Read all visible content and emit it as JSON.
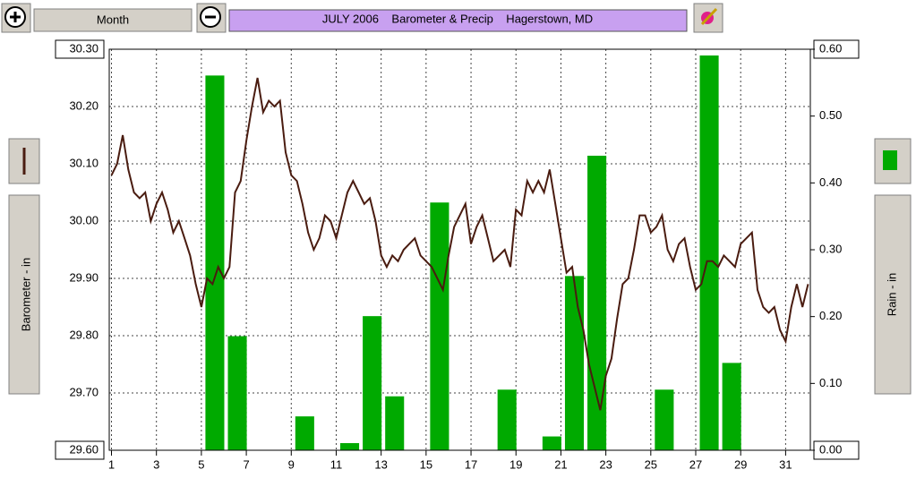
{
  "toolbar": {
    "period": "Month"
  },
  "chart_data": {
    "type": "combo",
    "title": "JULY 2006    Barometer & Precip    Hagerstown, MD",
    "xlim": [
      0.9,
      32.1
    ],
    "xticks": [
      1,
      3,
      5,
      7,
      9,
      11,
      13,
      15,
      17,
      19,
      21,
      23,
      25,
      27,
      29,
      31
    ],
    "ylim": [
      29.6,
      30.3
    ],
    "yticks": [
      {
        "value": 29.6,
        "label": "29.60"
      },
      {
        "value": 29.7,
        "label": "29.70"
      },
      {
        "value": 29.8,
        "label": "29.80"
      },
      {
        "value": 29.9,
        "label": "29.90"
      },
      {
        "value": 30.0,
        "label": "30.00"
      },
      {
        "value": 30.1,
        "label": "30.10"
      },
      {
        "value": 30.2,
        "label": "30.20"
      },
      {
        "value": 30.3,
        "label": "30.30"
      }
    ],
    "y2lim": [
      0,
      0.6
    ],
    "y2ticks": [
      {
        "value": 0,
        "label": "0.00"
      },
      {
        "value": 0.1,
        "label": "0.10"
      },
      {
        "value": 0.2,
        "label": "0.20"
      },
      {
        "value": 0.3,
        "label": "0.30"
      },
      {
        "value": 0.4,
        "label": "0.40"
      },
      {
        "value": 0.5,
        "label": "0.50"
      },
      {
        "value": 0.6,
        "label": "0.60"
      }
    ],
    "grid": true,
    "series": [
      {
        "name": "Barometer - in",
        "type": "line",
        "color": "#4a1c10",
        "x": [
          1,
          1.25,
          1.5,
          1.75,
          2,
          2.25,
          2.5,
          2.75,
          3,
          3.25,
          3.5,
          3.75,
          4,
          4.25,
          4.5,
          4.75,
          5,
          5.25,
          5.5,
          5.75,
          6,
          6.25,
          6.5,
          6.75,
          7,
          7.25,
          7.5,
          7.75,
          8,
          8.25,
          8.5,
          8.75,
          9,
          9.25,
          9.5,
          9.75,
          10,
          10.25,
          10.5,
          10.75,
          11,
          11.25,
          11.5,
          11.75,
          12,
          12.25,
          12.5,
          12.75,
          13,
          13.25,
          13.5,
          13.75,
          14,
          14.25,
          14.5,
          14.75,
          15,
          15.25,
          15.5,
          15.75,
          16,
          16.25,
          16.5,
          16.75,
          17,
          17.25,
          17.5,
          17.75,
          18,
          18.25,
          18.5,
          18.75,
          19,
          19.25,
          19.5,
          19.75,
          20,
          20.25,
          20.5,
          20.75,
          21,
          21.25,
          21.5,
          21.75,
          22,
          22.25,
          22.5,
          22.75,
          23,
          23.25,
          23.5,
          23.75,
          24,
          24.25,
          24.5,
          24.75,
          25,
          25.25,
          25.5,
          25.75,
          26,
          26.25,
          26.5,
          26.75,
          27,
          27.25,
          27.5,
          27.75,
          28,
          28.25,
          28.5,
          28.75,
          29,
          29.25,
          29.5,
          29.75,
          30,
          30.25,
          30.5,
          30.75,
          31,
          31.25,
          31.5,
          31.75,
          32
        ],
        "values": [
          30.08,
          30.1,
          30.15,
          30.09,
          30.05,
          30.04,
          30.05,
          30.0,
          30.03,
          30.05,
          30.02,
          29.98,
          30.0,
          29.97,
          29.94,
          29.89,
          29.85,
          29.9,
          29.89,
          29.92,
          29.9,
          29.92,
          30.05,
          30.07,
          30.14,
          30.2,
          30.25,
          30.19,
          30.21,
          30.2,
          30.21,
          30.12,
          30.08,
          30.07,
          30.03,
          29.98,
          29.95,
          29.97,
          30.01,
          30.0,
          29.97,
          30.01,
          30.05,
          30.07,
          30.05,
          30.03,
          30.04,
          30.0,
          29.94,
          29.92,
          29.94,
          29.93,
          29.95,
          29.96,
          29.97,
          29.94,
          29.93,
          29.92,
          29.9,
          29.88,
          29.94,
          29.99,
          30.01,
          30.03,
          29.96,
          29.99,
          30.01,
          29.97,
          29.93,
          29.94,
          29.95,
          29.92,
          30.02,
          30.01,
          30.07,
          30.05,
          30.07,
          30.05,
          30.09,
          30.03,
          29.97,
          29.91,
          29.92,
          29.85,
          29.81,
          29.75,
          29.71,
          29.67,
          29.73,
          29.76,
          29.83,
          29.89,
          29.9,
          29.95,
          30.01,
          30.01,
          29.98,
          29.99,
          30.01,
          29.95,
          29.93,
          29.96,
          29.97,
          29.92,
          29.88,
          29.89,
          29.93,
          29.93,
          29.92,
          29.94,
          29.93,
          29.92,
          29.96,
          29.97,
          29.98,
          29.88,
          29.85,
          29.84,
          29.85,
          29.81,
          29.79,
          29.85,
          29.89,
          29.85,
          29.89
        ]
      },
      {
        "name": "Rain - in",
        "type": "bar",
        "axis": "y2",
        "color": "#00aa00",
        "x": [
          1,
          2,
          3,
          4,
          5,
          6,
          7,
          8,
          9,
          10,
          11,
          12,
          13,
          14,
          15,
          16,
          17,
          18,
          19,
          20,
          21,
          22,
          23,
          24,
          25,
          26,
          27,
          28,
          29,
          30,
          31
        ],
        "values": [
          0,
          0,
          0,
          0,
          0.56,
          0.17,
          0,
          0,
          0.05,
          0,
          0.01,
          0.2,
          0.08,
          0,
          0.37,
          0,
          0,
          0.09,
          0,
          0.02,
          0.26,
          0.44,
          0,
          0,
          0.09,
          0,
          0.59,
          0.13,
          0,
          0,
          0
        ]
      }
    ]
  }
}
